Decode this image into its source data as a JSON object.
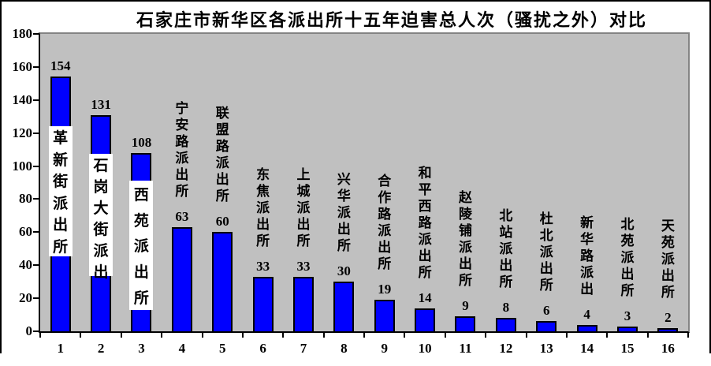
{
  "chart_data": {
    "type": "bar",
    "title": "石家庄市新华区各派出所十五年迫害总人次（骚扰之外）对比",
    "categories": [
      "1",
      "2",
      "3",
      "4",
      "5",
      "6",
      "7",
      "8",
      "9",
      "10",
      "11",
      "12",
      "13",
      "14",
      "15",
      "16"
    ],
    "bar_labels": [
      "革新街派出所",
      "石岗大街派出",
      "西苑派出所",
      "宁安路派出所",
      "联盟路派出所",
      "东焦派出所",
      "上城派出所",
      "兴华派出所",
      "合作路派出所",
      "和平西路派出所",
      "赵陵铺派出所",
      "北站派出所",
      "杜北派出所",
      "新华路派出",
      "北苑派出所",
      "天苑派出所"
    ],
    "values": [
      154,
      131,
      108,
      63,
      60,
      33,
      33,
      30,
      19,
      14,
      9,
      8,
      6,
      4,
      3,
      2
    ],
    "value_labels_shown": true,
    "xlabel": "",
    "ylabel": "",
    "ylim": [
      0,
      180
    ],
    "yticks": [
      0,
      20,
      40,
      60,
      80,
      100,
      120,
      140,
      160,
      180
    ],
    "grid": false,
    "legend_position": "none",
    "boxed_label_indices": [
      0,
      1,
      2
    ],
    "colors": {
      "bar_fill": "#0000ff",
      "bar_border": "#000000",
      "plot_background": "#c0c0c0",
      "plot_border": "#848484",
      "axis_line": "#000000",
      "label_box_background": "#ffffff",
      "text": "#000000"
    }
  }
}
